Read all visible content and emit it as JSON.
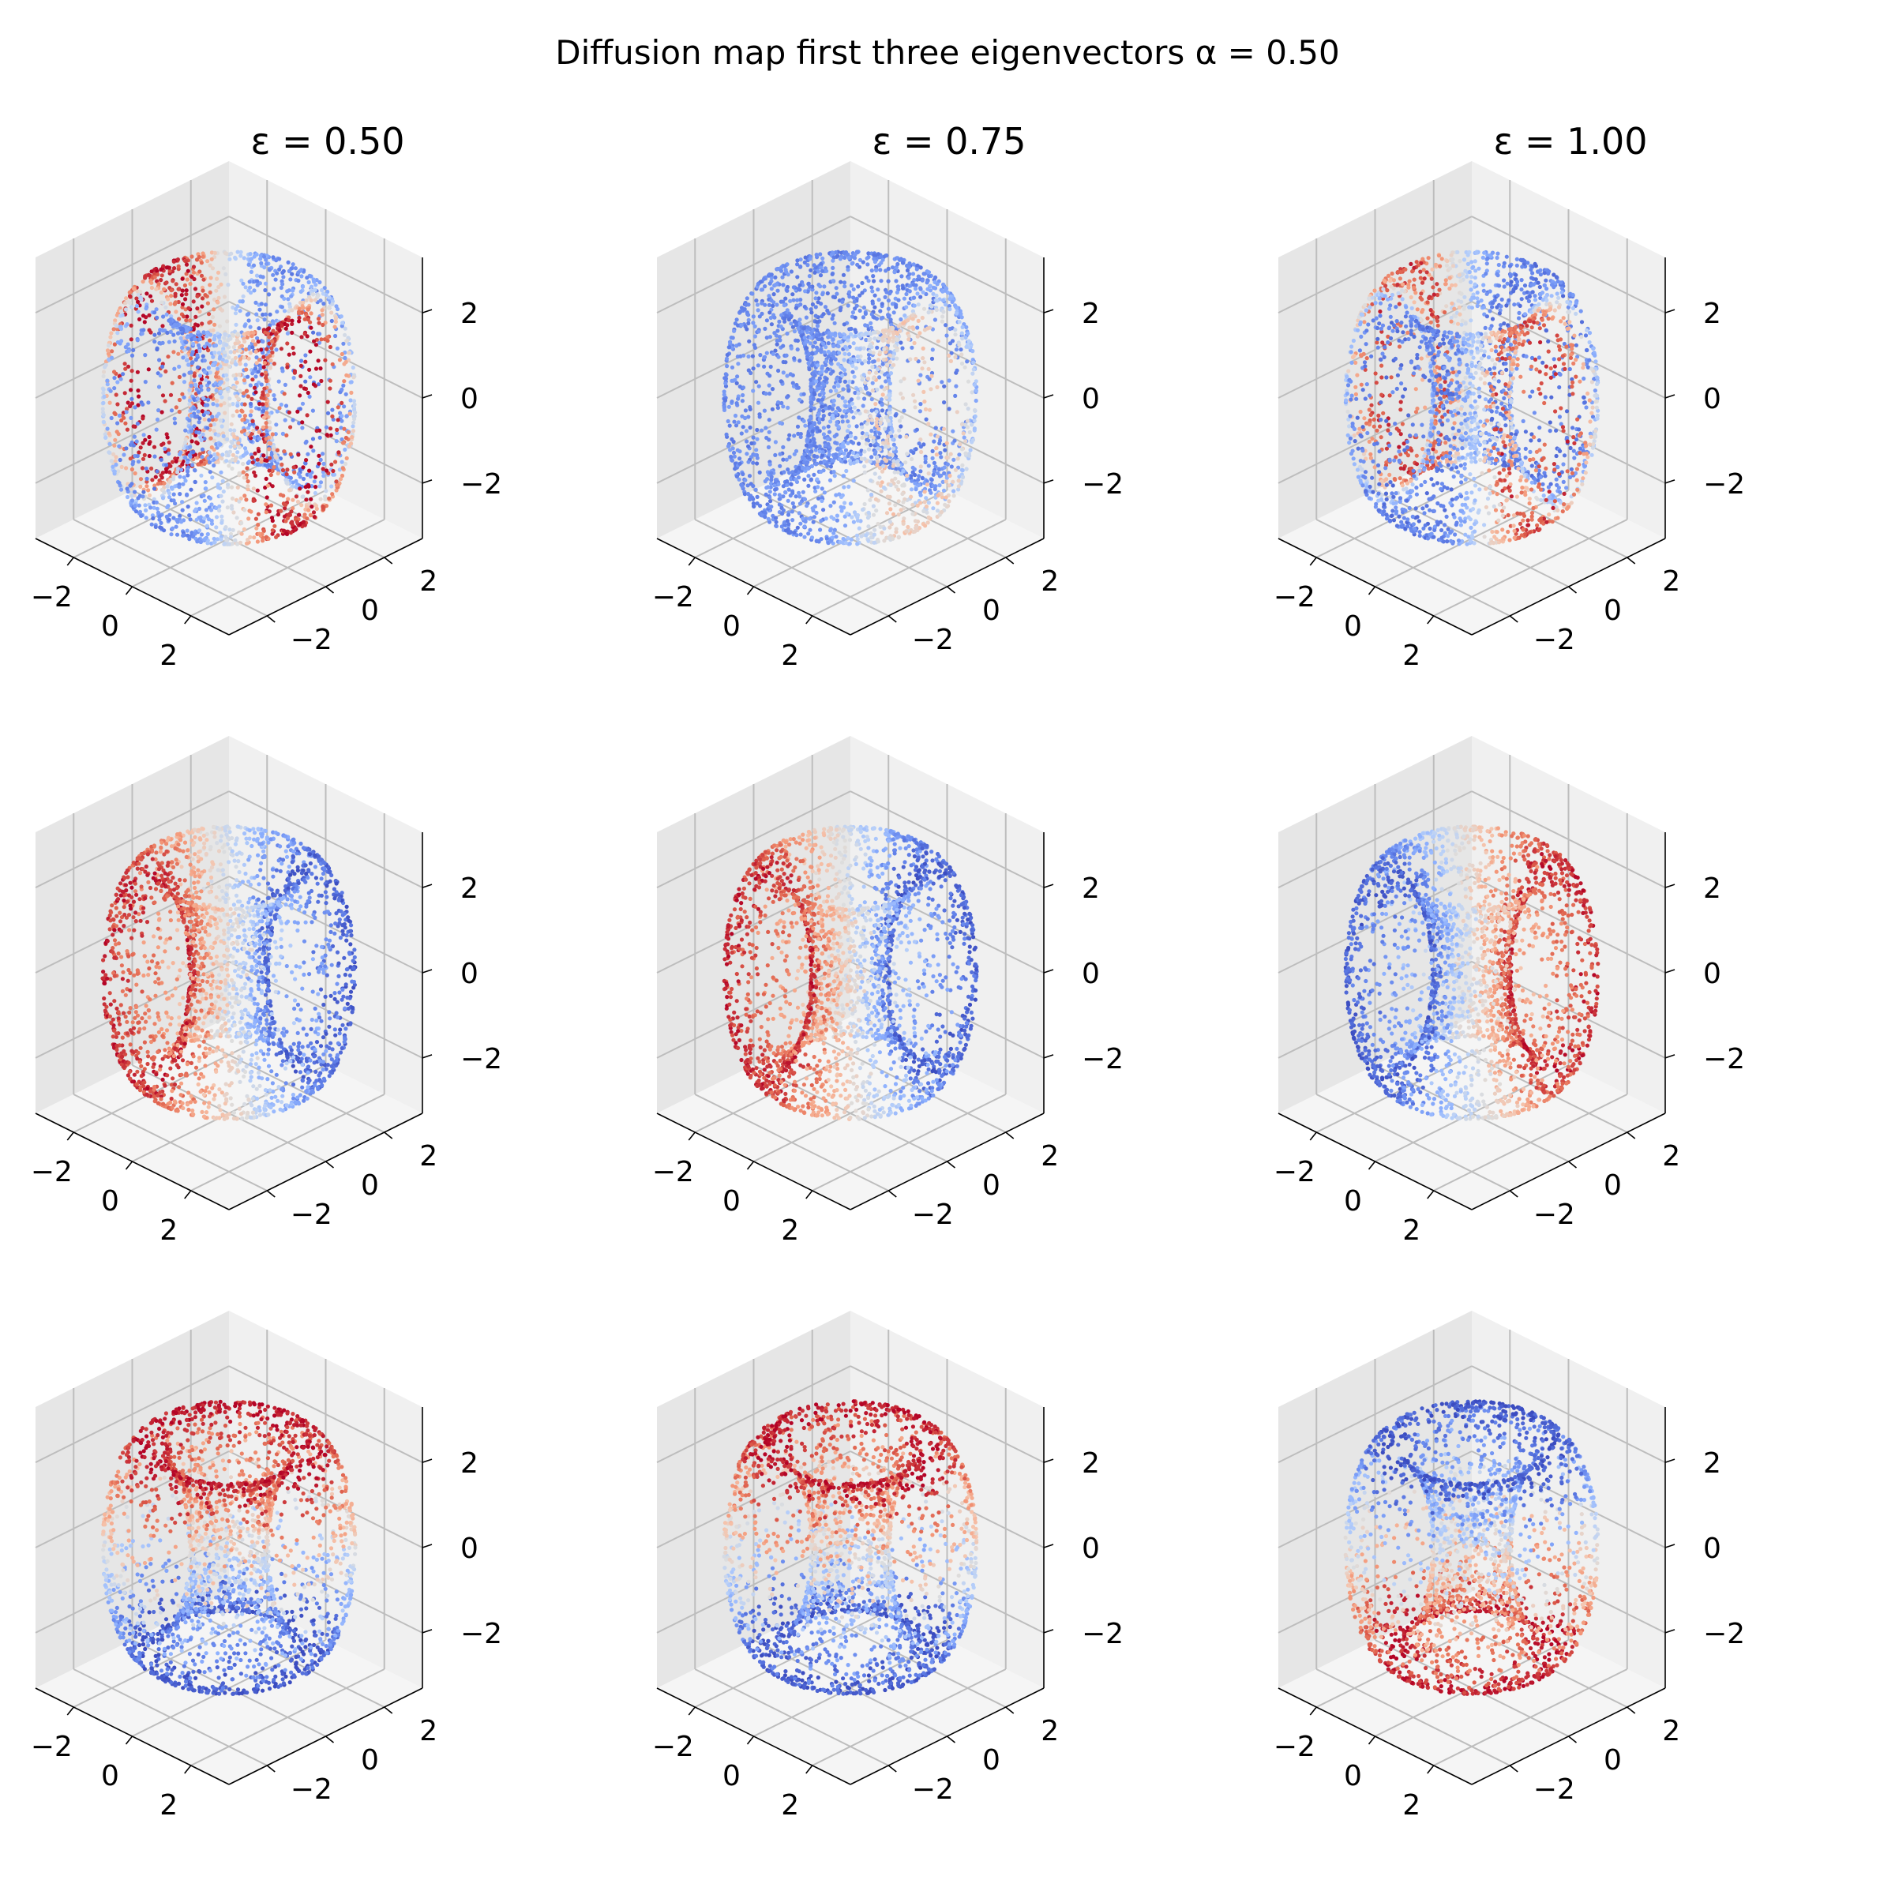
{
  "title": "Diffusion map first three eigenvectors α = 0.50",
  "colors": {
    "colormap": "coolwarm",
    "low": "#3b4cc0",
    "mid": "#dddddd",
    "high": "#b40426",
    "pane": "#f2f2f2",
    "grid": "#b0b0b0"
  },
  "chart_data": {
    "type": "scatter",
    "projection": "3d",
    "colormap": "coolwarm",
    "grid": true,
    "column_titles": [
      "ε =  0.50",
      "ε =  0.75",
      "ε =  1.00"
    ],
    "row_labels": [],
    "axis_ticks": {
      "x": {
        "values": [
          -2,
          0,
          2
        ],
        "labels": [
          "−2",
          "0",
          "2"
        ]
      },
      "y": {
        "values": [
          -2,
          0,
          2
        ],
        "labels": [
          "−2",
          "0",
          "2"
        ]
      },
      "z": {
        "values": [
          -2,
          0,
          2
        ],
        "labels": [
          "−2",
          "0",
          "2"
        ]
      }
    },
    "xlim": [
      -3.3,
      3.3
    ],
    "ylim": [
      -3.3,
      3.3
    ],
    "zlim": [
      -3.3,
      3.3
    ],
    "surface": "torus-like point cloud (~3000 points each)",
    "panels": [
      {
        "row": 0,
        "col": 0,
        "epsilon": 0.5,
        "eigenvector": 1,
        "color_pattern": "red bands along left and right rims, blue interior"
      },
      {
        "row": 0,
        "col": 1,
        "epsilon": 0.75,
        "eigenvector": 1,
        "color_pattern": "mostly blue, light red on outer right rim"
      },
      {
        "row": 0,
        "col": 2,
        "epsilon": 1.0,
        "eigenvector": 1,
        "color_pattern": "blue center, red outer left and right rims"
      },
      {
        "row": 1,
        "col": 0,
        "epsilon": 0.5,
        "eigenvector": 2,
        "color_pattern": "blue front-left, red back-right"
      },
      {
        "row": 1,
        "col": 1,
        "epsilon": 0.75,
        "eigenvector": 2,
        "color_pattern": "blue front-left, red back-right"
      },
      {
        "row": 1,
        "col": 2,
        "epsilon": 1.0,
        "eigenvector": 2,
        "color_pattern": "red front-left, blue back-right"
      },
      {
        "row": 2,
        "col": 0,
        "epsilon": 0.5,
        "eigenvector": 3,
        "color_pattern": "red top, blue bottom"
      },
      {
        "row": 2,
        "col": 1,
        "epsilon": 0.75,
        "eigenvector": 3,
        "color_pattern": "red top, blue bottom"
      },
      {
        "row": 2,
        "col": 2,
        "epsilon": 1.0,
        "eigenvector": 3,
        "color_pattern": "blue top, red bottom"
      }
    ]
  }
}
